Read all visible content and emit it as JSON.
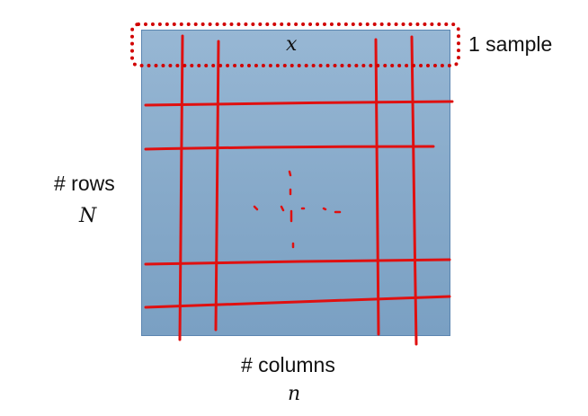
{
  "diagram": {
    "sample_variable": "x",
    "sample_label": "1 sample",
    "rows_label": "# rows",
    "rows_variable": "N",
    "columns_label": "# columns",
    "columns_variable": "n"
  },
  "colors": {
    "matrix_fill": "#86a9c9",
    "matrix_border": "#5c86b1",
    "ink_red": "#e01010",
    "dotted_box": "#d10000"
  }
}
